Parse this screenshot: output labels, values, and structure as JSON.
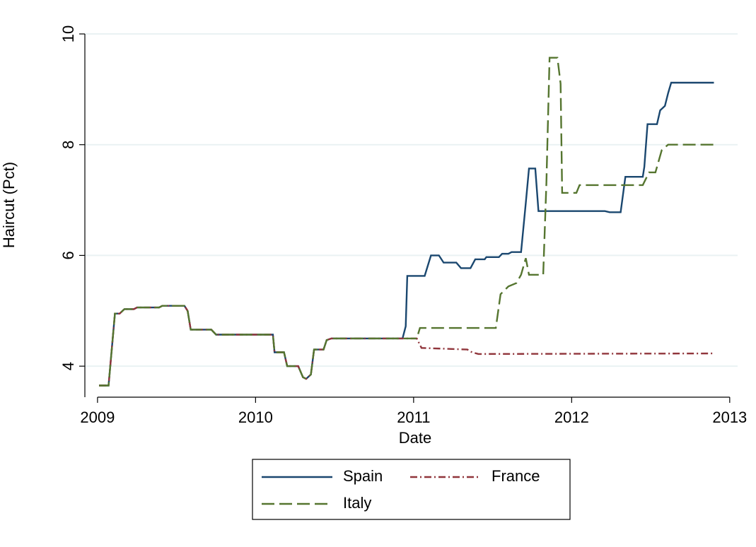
{
  "chart_data": {
    "type": "line",
    "y_label": "Haircut (Pct)",
    "x_label": "Date",
    "xlim": [
      2008.92,
      2013.05
    ],
    "ylim": [
      3.44,
      10.23
    ],
    "xticks": [
      2009,
      2010,
      2011,
      2012,
      2013
    ],
    "yticks": [
      4,
      6,
      8,
      10
    ],
    "grid": true,
    "legend": "bottom",
    "series": [
      {
        "name": "Spain",
        "color": "#1a476f",
        "dash": "solid",
        "x": [
          2009.01,
          2009.07,
          2009.11,
          2009.14,
          2009.17,
          2009.23,
          2009.25,
          2009.39,
          2009.41,
          2009.55,
          2009.57,
          2009.59,
          2009.72,
          2009.75,
          2010.11,
          2010.12,
          2010.18,
          2010.2,
          2010.27,
          2010.3,
          2010.32,
          2010.35,
          2010.37,
          2010.43,
          2010.45,
          2010.48,
          2010.93,
          2010.95,
          2010.96,
          2011.07,
          2011.11,
          2011.16,
          2011.19,
          2011.27,
          2011.3,
          2011.36,
          2011.39,
          2011.45,
          2011.46,
          2011.54,
          2011.56,
          2011.6,
          2011.62,
          2011.68,
          2011.71,
          2011.73,
          2011.77,
          2011.79,
          2012.21,
          2012.24,
          2012.31,
          2012.34,
          2012.45,
          2012.46,
          2012.48,
          2012.54,
          2012.56,
          2012.59,
          2012.61,
          2012.63,
          2012.9
        ],
        "values": [
          3.65,
          3.65,
          4.95,
          4.95,
          5.03,
          5.03,
          5.06,
          5.06,
          5.09,
          5.09,
          5.0,
          4.66,
          4.66,
          4.57,
          4.57,
          4.25,
          4.25,
          4.0,
          4.0,
          3.8,
          3.77,
          3.85,
          4.3,
          4.3,
          4.47,
          4.5,
          4.5,
          4.72,
          5.63,
          5.63,
          6.0,
          6.0,
          5.87,
          5.87,
          5.77,
          5.77,
          5.93,
          5.93,
          5.97,
          5.97,
          6.03,
          6.03,
          6.06,
          6.06,
          6.95,
          7.57,
          7.57,
          6.8,
          6.8,
          6.78,
          6.78,
          7.42,
          7.42,
          7.6,
          8.37,
          8.37,
          8.62,
          8.7,
          8.93,
          9.12,
          9.12
        ]
      },
      {
        "name": "France",
        "color": "#90353b",
        "dash": "dashdot",
        "x": [
          2009.01,
          2009.07,
          2009.11,
          2009.14,
          2009.17,
          2009.23,
          2009.25,
          2009.39,
          2009.41,
          2009.55,
          2009.57,
          2009.59,
          2009.72,
          2009.75,
          2010.11,
          2010.12,
          2010.18,
          2010.2,
          2010.27,
          2010.3,
          2010.32,
          2010.35,
          2010.37,
          2010.43,
          2010.45,
          2010.48,
          2010.93,
          2011.02,
          2011.05,
          2011.34,
          2011.37,
          2011.41,
          2012.9
        ],
        "values": [
          3.65,
          3.65,
          4.95,
          4.95,
          5.03,
          5.03,
          5.06,
          5.06,
          5.09,
          5.09,
          5.0,
          4.66,
          4.66,
          4.57,
          4.57,
          4.25,
          4.25,
          4.0,
          4.0,
          3.8,
          3.77,
          3.85,
          4.3,
          4.3,
          4.47,
          4.5,
          4.5,
          4.5,
          4.33,
          4.3,
          4.25,
          4.22,
          4.23
        ]
      },
      {
        "name": "Italy",
        "color": "#55752f",
        "dash": "longdash",
        "x": [
          2009.01,
          2009.07,
          2009.11,
          2009.14,
          2009.17,
          2009.23,
          2009.25,
          2009.39,
          2009.41,
          2009.55,
          2009.57,
          2009.59,
          2009.72,
          2009.75,
          2010.11,
          2010.12,
          2010.18,
          2010.2,
          2010.27,
          2010.3,
          2010.32,
          2010.35,
          2010.37,
          2010.43,
          2010.45,
          2010.48,
          2010.93,
          2011.02,
          2011.04,
          2011.52,
          2011.55,
          2011.6,
          2011.65,
          2011.68,
          2011.71,
          2011.73,
          2011.82,
          2011.84,
          2011.86,
          2011.91,
          2011.93,
          2011.94,
          2012.03,
          2012.05,
          2012.45,
          2012.49,
          2012.53,
          2012.57,
          2012.61,
          2012.9
        ],
        "values": [
          3.65,
          3.65,
          4.95,
          4.95,
          5.03,
          5.03,
          5.06,
          5.06,
          5.09,
          5.09,
          5.0,
          4.66,
          4.66,
          4.57,
          4.57,
          4.25,
          4.25,
          4.0,
          4.0,
          3.8,
          3.77,
          3.85,
          4.3,
          4.3,
          4.47,
          4.5,
          4.5,
          4.5,
          4.69,
          4.69,
          5.3,
          5.44,
          5.5,
          5.65,
          5.95,
          5.65,
          5.65,
          7.3,
          9.57,
          9.57,
          9.1,
          7.13,
          7.13,
          7.27,
          7.27,
          7.5,
          7.5,
          7.9,
          8.0,
          8.0
        ]
      }
    ]
  }
}
